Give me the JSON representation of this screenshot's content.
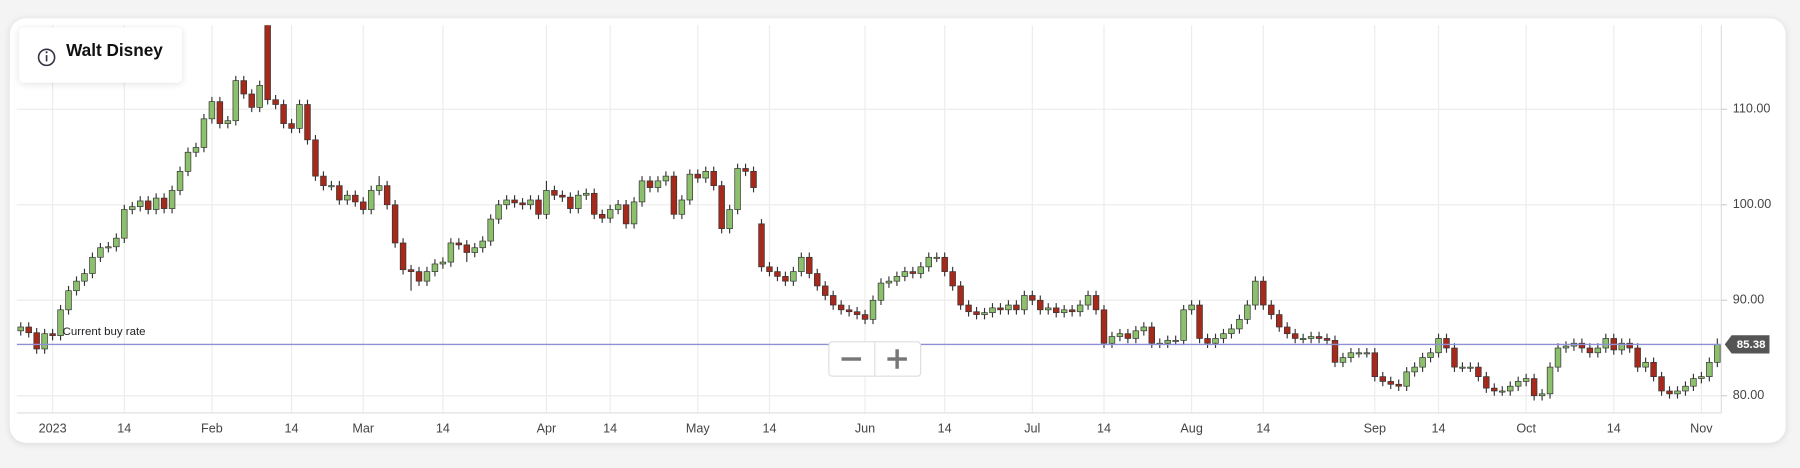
{
  "chart_data": {
    "type": "candlestick",
    "title": "Walt Disney",
    "categories": [
      null,
      null,
      null,
      null,
      "2023",
      null,
      null,
      null,
      null,
      null,
      null,
      null,
      null,
      "14",
      null,
      null,
      null,
      null,
      null,
      null,
      null,
      null,
      null,
      null,
      "Feb",
      null,
      null,
      null,
      null,
      null,
      null,
      null,
      null,
      null,
      "14",
      null,
      null,
      null,
      null,
      null,
      null,
      null,
      null,
      "Mar",
      null,
      null,
      null,
      null,
      null,
      null,
      null,
      null,
      null,
      "14",
      null,
      null,
      null,
      null,
      null,
      null,
      null,
      null,
      null,
      null,
      null,
      null,
      "Apr",
      null,
      null,
      null,
      null,
      null,
      null,
      null,
      "14",
      null,
      null,
      null,
      null,
      null,
      null,
      null,
      null,
      null,
      null,
      "May",
      null,
      null,
      null,
      null,
      null,
      null,
      null,
      null,
      "14",
      null,
      null,
      null,
      null,
      null,
      null,
      null,
      null,
      null,
      null,
      null,
      "Jun",
      null,
      null,
      null,
      null,
      null,
      null,
      null,
      null,
      null,
      "14",
      null,
      null,
      null,
      null,
      null,
      null,
      null,
      null,
      null,
      null,
      "Jul",
      null,
      null,
      null,
      null,
      null,
      null,
      null,
      null,
      "14",
      null,
      null,
      null,
      null,
      null,
      null,
      null,
      null,
      null,
      null,
      "Aug",
      null,
      null,
      null,
      null,
      null,
      null,
      null,
      null,
      "14",
      null,
      null,
      null,
      null,
      null,
      null,
      null,
      null,
      null,
      null,
      null,
      null,
      null,
      "Sep",
      null,
      null,
      null,
      null,
      null,
      null,
      null,
      "14",
      null,
      null,
      null,
      null,
      null,
      null,
      null,
      null,
      null,
      null,
      "Oct",
      null,
      null,
      null,
      null,
      null,
      null,
      null,
      null,
      null,
      null,
      "14",
      null,
      null,
      null,
      null,
      null,
      null,
      null,
      null,
      null,
      null,
      "Nov",
      null,
      null
    ],
    "ohlc": [
      [
        86.8,
        87.7,
        86.3,
        87.2
      ],
      [
        87.2,
        87.7,
        86.1,
        86.6
      ],
      [
        86.6,
        87.1,
        84.4,
        84.9
      ],
      [
        84.9,
        87,
        84.4,
        86.5
      ],
      [
        86.5,
        87,
        85.8,
        86.3
      ],
      [
        86.3,
        89.5,
        85.8,
        89
      ],
      [
        89,
        91.5,
        88.5,
        91
      ],
      [
        91,
        92.5,
        90.5,
        92
      ],
      [
        92,
        93.3,
        91.5,
        92.8
      ],
      [
        92.8,
        95,
        92.3,
        94.5
      ],
      [
        94.5,
        96,
        94,
        95.5
      ],
      [
        95.5,
        96.1,
        95,
        95.6
      ],
      [
        95.6,
        97,
        95.1,
        96.5
      ],
      [
        96.5,
        100,
        96,
        99.5
      ],
      [
        99.5,
        100.3,
        99,
        99.8
      ],
      [
        99.8,
        100.9,
        99.3,
        100.4
      ],
      [
        100.4,
        100.9,
        99,
        99.5
      ],
      [
        99.5,
        101.2,
        99,
        100.7
      ],
      [
        100.7,
        101.2,
        99.1,
        99.6
      ],
      [
        99.6,
        102,
        99.1,
        101.5
      ],
      [
        101.5,
        104,
        101,
        103.5
      ],
      [
        103.5,
        106,
        103,
        105.5
      ],
      [
        105.5,
        106.5,
        105,
        106
      ],
      [
        106,
        109.5,
        105.5,
        109
      ],
      [
        109,
        111.3,
        108.5,
        110.8
      ],
      [
        110.8,
        111.3,
        108,
        108.5
      ],
      [
        108.5,
        109.3,
        108,
        108.8
      ],
      [
        108.8,
        113.5,
        108.3,
        113
      ],
      [
        113,
        113.5,
        111.1,
        111.6
      ],
      [
        111.6,
        112.1,
        109.7,
        110.2
      ],
      [
        110.2,
        113,
        109.7,
        112.5
      ],
      [
        119.5,
        120.5,
        110.5,
        111
      ],
      [
        111,
        111.5,
        110,
        110.5
      ],
      [
        110.5,
        111,
        108,
        108.5
      ],
      [
        108.5,
        109,
        107.5,
        108
      ],
      [
        108,
        111,
        107.5,
        110.5
      ],
      [
        110.5,
        111,
        106.3,
        106.8
      ],
      [
        106.8,
        107.3,
        102.5,
        103
      ],
      [
        103,
        103.5,
        101.5,
        102
      ],
      [
        102,
        102.5,
        101.5,
        102
      ],
      [
        102,
        102.5,
        100,
        100.5
      ],
      [
        100.5,
        101.5,
        100,
        101
      ],
      [
        101,
        101.5,
        99.8,
        100.3
      ],
      [
        100.3,
        100.8,
        99,
        99.5
      ],
      [
        99.5,
        102,
        99,
        101.5
      ],
      [
        101.5,
        103,
        101,
        102
      ],
      [
        102,
        102.5,
        99.5,
        100
      ],
      [
        100,
        100.5,
        95.5,
        96
      ],
      [
        96,
        96.5,
        92.7,
        93.2
      ],
      [
        93.2,
        93.7,
        91,
        93
      ],
      [
        93,
        93.5,
        91.5,
        92
      ],
      [
        92,
        93.5,
        91.5,
        93
      ],
      [
        93,
        94.3,
        92.5,
        93.8
      ],
      [
        93.8,
        94.5,
        93.3,
        94
      ],
      [
        94,
        96.5,
        93.5,
        96
      ],
      [
        96,
        96.5,
        95.3,
        95.8
      ],
      [
        95.8,
        96.3,
        94,
        95
      ],
      [
        95,
        96,
        94.5,
        95.5
      ],
      [
        95.5,
        96.7,
        95,
        96.2
      ],
      [
        96.2,
        99,
        95.7,
        98.5
      ],
      [
        98.5,
        100.5,
        98,
        100
      ],
      [
        100,
        101,
        99.5,
        100.5
      ],
      [
        100.5,
        101,
        99.7,
        100.2
      ],
      [
        100.2,
        100.7,
        99.5,
        100
      ],
      [
        100,
        101,
        99.5,
        100.5
      ],
      [
        100.5,
        101,
        98.5,
        99
      ],
      [
        99,
        102.5,
        98.5,
        101.5
      ],
      [
        101.5,
        102,
        100.5,
        101
      ],
      [
        101,
        101.5,
        100.3,
        100.8
      ],
      [
        100.8,
        101.3,
        99.1,
        99.6
      ],
      [
        99.6,
        101.5,
        99.1,
        101
      ],
      [
        101,
        101.7,
        100.5,
        101.2
      ],
      [
        101.2,
        101.7,
        98.5,
        99
      ],
      [
        99,
        99.5,
        98.1,
        98.6
      ],
      [
        98.6,
        100,
        98.1,
        99.5
      ],
      [
        99.5,
        100.5,
        99,
        100
      ],
      [
        100,
        100.5,
        97.5,
        98
      ],
      [
        98,
        100.8,
        97.5,
        100.3
      ],
      [
        100.3,
        103,
        99.8,
        102.5
      ],
      [
        102.5,
        103,
        101.3,
        101.8
      ],
      [
        101.8,
        103,
        101.3,
        102.5
      ],
      [
        102.5,
        103.5,
        102,
        103
      ],
      [
        103,
        103.5,
        98.5,
        99
      ],
      [
        99,
        101,
        98.5,
        100.5
      ],
      [
        100.5,
        103.7,
        100,
        103.2
      ],
      [
        103.2,
        103.7,
        102.3,
        102.8
      ],
      [
        102.8,
        104,
        102.3,
        103.5
      ],
      [
        103.5,
        104,
        101.5,
        102
      ],
      [
        102,
        102.5,
        97,
        97.5
      ],
      [
        97.5,
        100,
        97,
        99.5
      ],
      [
        99.5,
        104.3,
        99,
        103.8
      ],
      [
        103.8,
        104.3,
        103,
        103.5
      ],
      [
        103.5,
        104,
        101.3,
        101.8
      ],
      [
        98,
        98.5,
        93,
        93.5
      ],
      [
        93.5,
        94,
        92.5,
        93
      ],
      [
        93,
        93.5,
        92,
        92.5
      ],
      [
        92.5,
        93,
        91.5,
        92
      ],
      [
        92,
        93.5,
        91.5,
        93
      ],
      [
        93,
        95,
        92.5,
        94.5
      ],
      [
        94.5,
        95,
        92.3,
        92.8
      ],
      [
        92.8,
        93.3,
        91,
        91.5
      ],
      [
        91.5,
        92,
        90,
        90.5
      ],
      [
        90.5,
        91,
        89,
        89.5
      ],
      [
        89.5,
        90,
        88.5,
        89
      ],
      [
        89,
        89.5,
        88.3,
        88.8
      ],
      [
        88.8,
        89.3,
        88,
        88.5
      ],
      [
        88.5,
        89,
        87.5,
        88
      ],
      [
        88,
        90.5,
        87.5,
        90
      ],
      [
        90,
        92.3,
        89.5,
        91.8
      ],
      [
        91.8,
        92.5,
        91.3,
        92
      ],
      [
        92,
        93,
        91.5,
        92.5
      ],
      [
        92.5,
        93.5,
        92,
        93
      ],
      [
        93,
        93.5,
        92.3,
        92.8
      ],
      [
        92.8,
        94,
        92.3,
        93.5
      ],
      [
        93.5,
        95,
        93,
        94.5
      ],
      [
        94.5,
        95,
        94,
        94.5
      ],
      [
        94.5,
        95,
        92.5,
        93
      ],
      [
        93,
        93.5,
        91,
        91.5
      ],
      [
        91.5,
        92,
        89,
        89.5
      ],
      [
        89.5,
        90,
        88.3,
        88.8
      ],
      [
        88.8,
        89.3,
        88,
        88.5
      ],
      [
        88.5,
        89.2,
        88,
        88.7
      ],
      [
        88.7,
        89.7,
        88.2,
        89.2
      ],
      [
        89.2,
        89.7,
        88.5,
        89
      ],
      [
        89,
        90,
        88.5,
        89.5
      ],
      [
        89.5,
        90,
        88.5,
        89
      ],
      [
        89,
        91,
        88.5,
        90.5
      ],
      [
        90.5,
        91,
        89.5,
        90
      ],
      [
        90,
        90.5,
        88.5,
        89
      ],
      [
        89,
        89.7,
        88.5,
        89.2
      ],
      [
        89.2,
        89.7,
        88.2,
        88.7
      ],
      [
        88.7,
        89.5,
        88.2,
        89
      ],
      [
        89,
        89.5,
        88.3,
        88.8
      ],
      [
        88.8,
        90,
        88.3,
        89.5
      ],
      [
        89.5,
        91,
        89,
        90.5
      ],
      [
        90.5,
        91,
        88.5,
        89
      ],
      [
        89,
        89.5,
        85,
        85.5
      ],
      [
        85.5,
        86.7,
        85,
        86.2
      ],
      [
        86.2,
        87,
        85.7,
        86.5
      ],
      [
        86.5,
        87,
        85.5,
        86
      ],
      [
        86,
        87.3,
        85.5,
        86.8
      ],
      [
        86.8,
        87.7,
        86.3,
        87.2
      ],
      [
        87.2,
        87.7,
        85,
        85.5
      ],
      [
        85.5,
        86,
        85,
        85.5
      ],
      [
        85.5,
        86.3,
        85,
        85.8
      ],
      [
        85.8,
        86.3,
        85.3,
        85.8
      ],
      [
        85.8,
        89.5,
        85.3,
        89
      ],
      [
        89,
        90,
        88.5,
        89.5
      ],
      [
        89.5,
        90,
        85.5,
        86
      ],
      [
        86,
        86.5,
        85,
        85.5
      ],
      [
        85.5,
        86.5,
        85,
        86
      ],
      [
        86,
        87,
        85.5,
        86.5
      ],
      [
        86.5,
        87.5,
        86,
        87
      ],
      [
        87,
        88.5,
        86.5,
        88
      ],
      [
        88,
        90,
        87.5,
        89.5
      ],
      [
        89.5,
        92.5,
        89,
        92
      ],
      [
        92,
        92.5,
        89,
        89.5
      ],
      [
        89.5,
        90,
        88,
        88.5
      ],
      [
        88.5,
        89,
        86.7,
        87.2
      ],
      [
        87.2,
        87.7,
        86,
        86.5
      ],
      [
        86.5,
        87,
        85.5,
        86
      ],
      [
        86,
        86.5,
        85.5,
        86
      ],
      [
        86,
        86.7,
        85.5,
        86.2
      ],
      [
        86.2,
        86.7,
        85.5,
        86
      ],
      [
        86,
        86.5,
        85.3,
        85.8
      ],
      [
        85.8,
        86.3,
        83,
        83.5
      ],
      [
        83.5,
        84.5,
        83,
        84
      ],
      [
        84,
        85,
        83.5,
        84.5
      ],
      [
        84.5,
        85,
        84,
        84.5
      ],
      [
        84.5,
        85,
        84,
        84.5
      ],
      [
        84.5,
        85,
        81.5,
        82
      ],
      [
        82,
        82.5,
        81,
        81.5
      ],
      [
        81.5,
        82,
        80.7,
        81.2
      ],
      [
        81.2,
        81.7,
        80.5,
        81
      ],
      [
        81,
        83,
        80.5,
        82.5
      ],
      [
        82.5,
        83.5,
        82,
        83
      ],
      [
        83,
        84.5,
        82.5,
        84
      ],
      [
        84,
        85,
        83.5,
        84.5
      ],
      [
        84.5,
        86.5,
        84,
        86
      ],
      [
        86,
        86.5,
        84.5,
        85
      ],
      [
        85,
        85.5,
        82.5,
        83
      ],
      [
        83,
        83.5,
        82.5,
        83
      ],
      [
        83,
        83.5,
        82.5,
        83
      ],
      [
        83,
        83.5,
        81.5,
        82
      ],
      [
        82,
        82.5,
        80.3,
        80.8
      ],
      [
        80.8,
        81.3,
        80,
        80.5
      ],
      [
        80.5,
        81,
        80,
        80.5
      ],
      [
        80.5,
        81.5,
        80,
        81
      ],
      [
        81,
        82,
        80.5,
        81.5
      ],
      [
        81.5,
        82.3,
        81,
        81.8
      ],
      [
        81.8,
        82.3,
        79.5,
        80
      ],
      [
        80,
        80.7,
        79.5,
        80.2
      ],
      [
        80.2,
        83.5,
        79.7,
        83
      ],
      [
        83,
        85.5,
        82.5,
        85
      ],
      [
        85,
        85.7,
        84.5,
        85.2
      ],
      [
        85.2,
        86,
        84.7,
        85.5
      ],
      [
        85.5,
        86,
        84.5,
        85
      ],
      [
        85,
        85.5,
        84,
        84.5
      ],
      [
        84.5,
        85.5,
        84,
        85
      ],
      [
        85,
        86.5,
        84.5,
        86
      ],
      [
        86,
        86.5,
        84.3,
        84.8
      ],
      [
        84.8,
        86,
        84.3,
        85.5
      ],
      [
        85.5,
        86,
        84.5,
        85
      ],
      [
        85,
        85.5,
        82.5,
        83
      ],
      [
        83,
        84,
        82.5,
        83.5
      ],
      [
        83.5,
        84,
        81.5,
        82
      ],
      [
        82,
        82.5,
        80,
        80.5
      ],
      [
        80.5,
        81,
        79.7,
        80.2
      ],
      [
        80.2,
        81,
        79.7,
        80.5
      ],
      [
        80.5,
        81.5,
        80,
        81
      ],
      [
        81,
        82.3,
        80.5,
        81.8
      ],
      [
        81.8,
        82.5,
        81.3,
        82
      ],
      [
        82,
        84,
        81.5,
        83.5
      ],
      [
        83.5,
        86,
        83,
        85.38
      ]
    ],
    "colors": {
      "up": "#8cc06c",
      "down": "#a52a1c"
    },
    "ylim": [
      78.2,
      118.8
    ],
    "yticks": [
      {
        "value": 80,
        "label": "80.00"
      },
      {
        "value": 90,
        "label": "90.00"
      },
      {
        "value": 100,
        "label": "100.00"
      },
      {
        "value": 110,
        "label": "110.00"
      }
    ],
    "grid": true,
    "reference_line": {
      "value": 85.38,
      "label": "Current buy rate"
    }
  }
}
